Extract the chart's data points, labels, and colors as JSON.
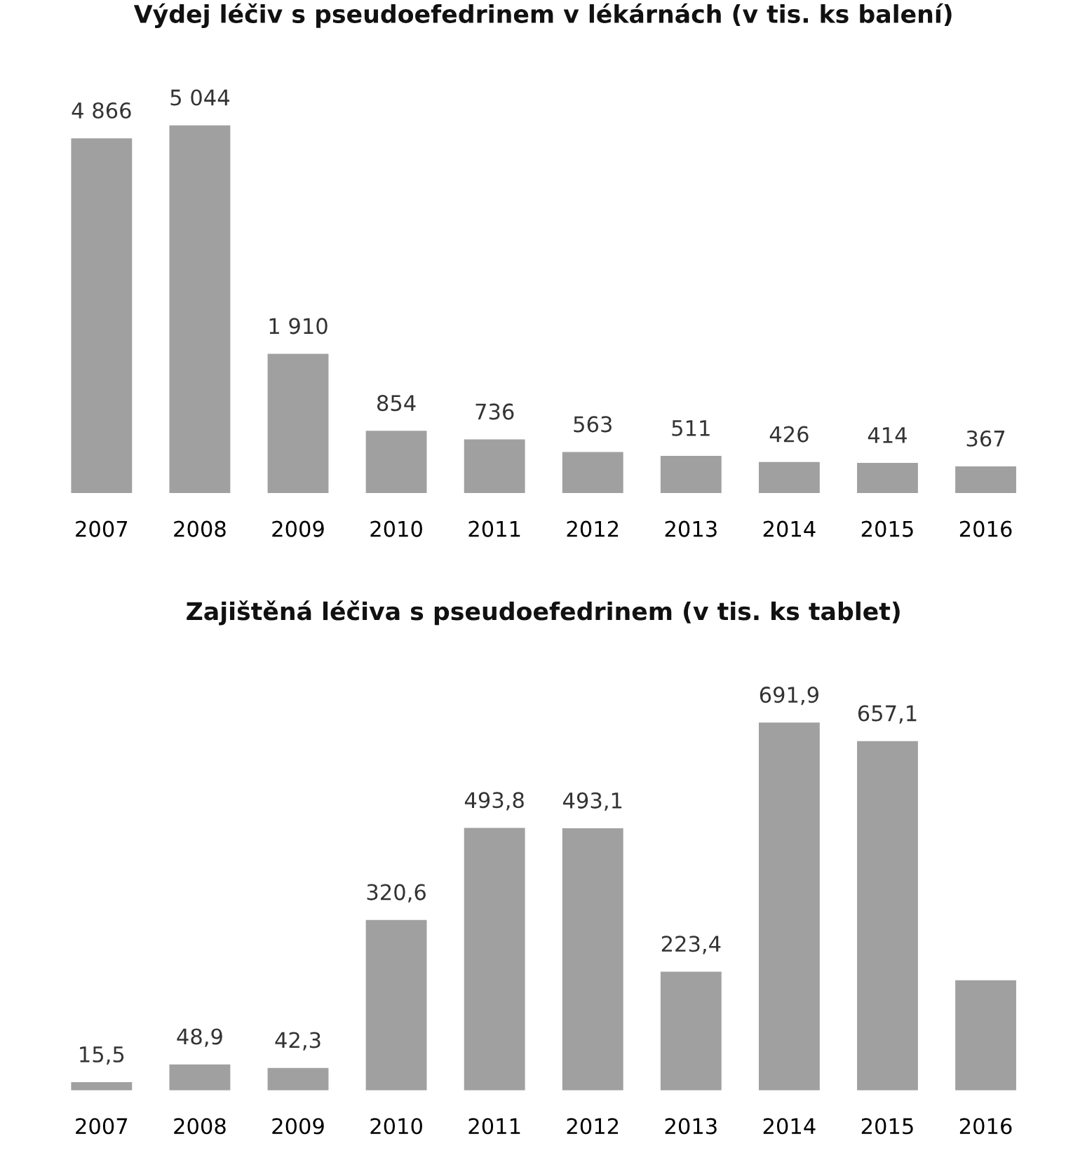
{
  "chart_data": [
    {
      "type": "bar",
      "title": "Výdej léčiv s pseudoefedrinem v lékárnách (v tis. ks balení)",
      "categories": [
        "2007",
        "2008",
        "2009",
        "2010",
        "2011",
        "2012",
        "2013",
        "2014",
        "2015",
        "2016"
      ],
      "values": [
        4866,
        5044,
        1910,
        854,
        736,
        563,
        511,
        426,
        414,
        367
      ],
      "value_labels": [
        "4 866",
        "5 044",
        "1 910",
        "854",
        "736",
        "563",
        "511",
        "426",
        "414",
        "367"
      ],
      "color": "#a0a0a0",
      "tick_labels": "x",
      "grid": false,
      "legend": false
    },
    {
      "type": "bar",
      "title": "Zajištěná léčiva s pseudoefedrinem (v tis. ks tablet)",
      "categories": [
        "2007",
        "2008",
        "2009",
        "2010",
        "2011",
        "2012",
        "2013",
        "2014",
        "2015",
        "2016"
      ],
      "values": [
        15.5,
        48.9,
        42.3,
        320.6,
        493.8,
        493.1,
        223.4,
        691.9,
        657.1,
        207
      ],
      "value_labels": [
        "15,5",
        "48,9",
        "42,3",
        "320,6",
        "493,8",
        "493,1",
        "223,4",
        "691,9",
        "657,1",
        null
      ],
      "color": "#a0a0a0",
      "tick_labels": "x",
      "grid": false,
      "legend": false
    }
  ]
}
